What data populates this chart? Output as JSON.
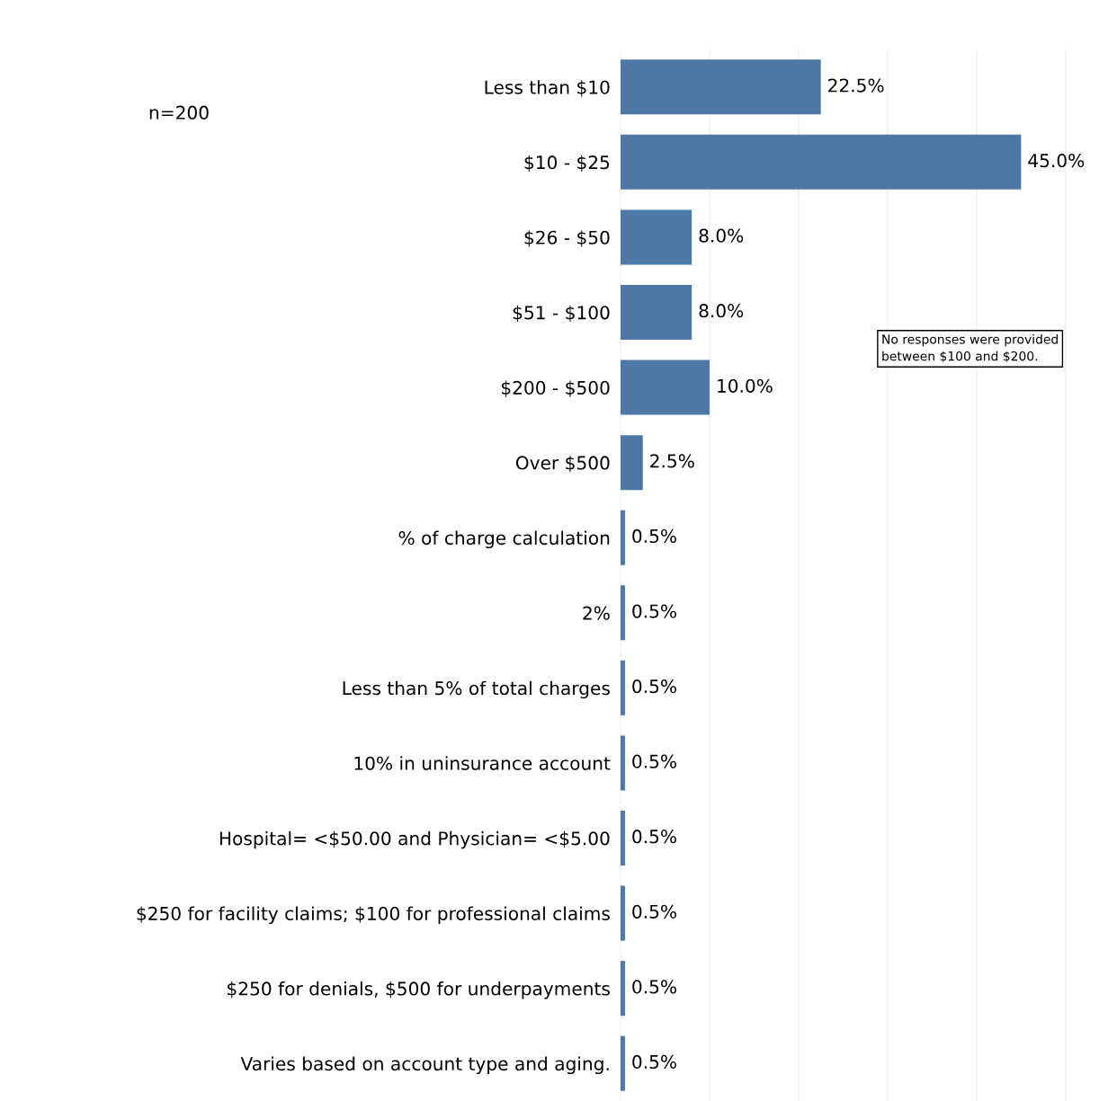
{
  "chart_data": {
    "type": "bar",
    "orientation": "horizontal",
    "categories": [
      "Less than $10",
      "$10 - $25",
      "$26 - $50",
      "$51 - $100",
      "$200 - $500",
      "Over $500",
      "% of charge calculation",
      "2%",
      "Less than 5% of total charges",
      "10% in uninsurance account",
      "Hospital= <$50.00 and Physician= <$5.00",
      "$250 for facility claims; $100 for professional claims",
      "$250 for denials, $500 for underpayments",
      "Varies based on account type and aging."
    ],
    "values": [
      22.5,
      45.0,
      8.0,
      8.0,
      10.0,
      2.5,
      0.5,
      0.5,
      0.5,
      0.5,
      0.5,
      0.5,
      0.5,
      0.5
    ],
    "value_labels": [
      "22.5%",
      "45.0%",
      "8.0%",
      "8.0%",
      "10.0%",
      "2.5%",
      "0.5%",
      "0.5%",
      "0.5%",
      "0.5%",
      "0.5%",
      "0.5%",
      "0.5%",
      "0.5%"
    ],
    "color": "#4e79a7",
    "grid": "x",
    "tick_labels": "y",
    "annotations": [
      "n=200",
      "No responses were provided between $100 and $200."
    ]
  }
}
